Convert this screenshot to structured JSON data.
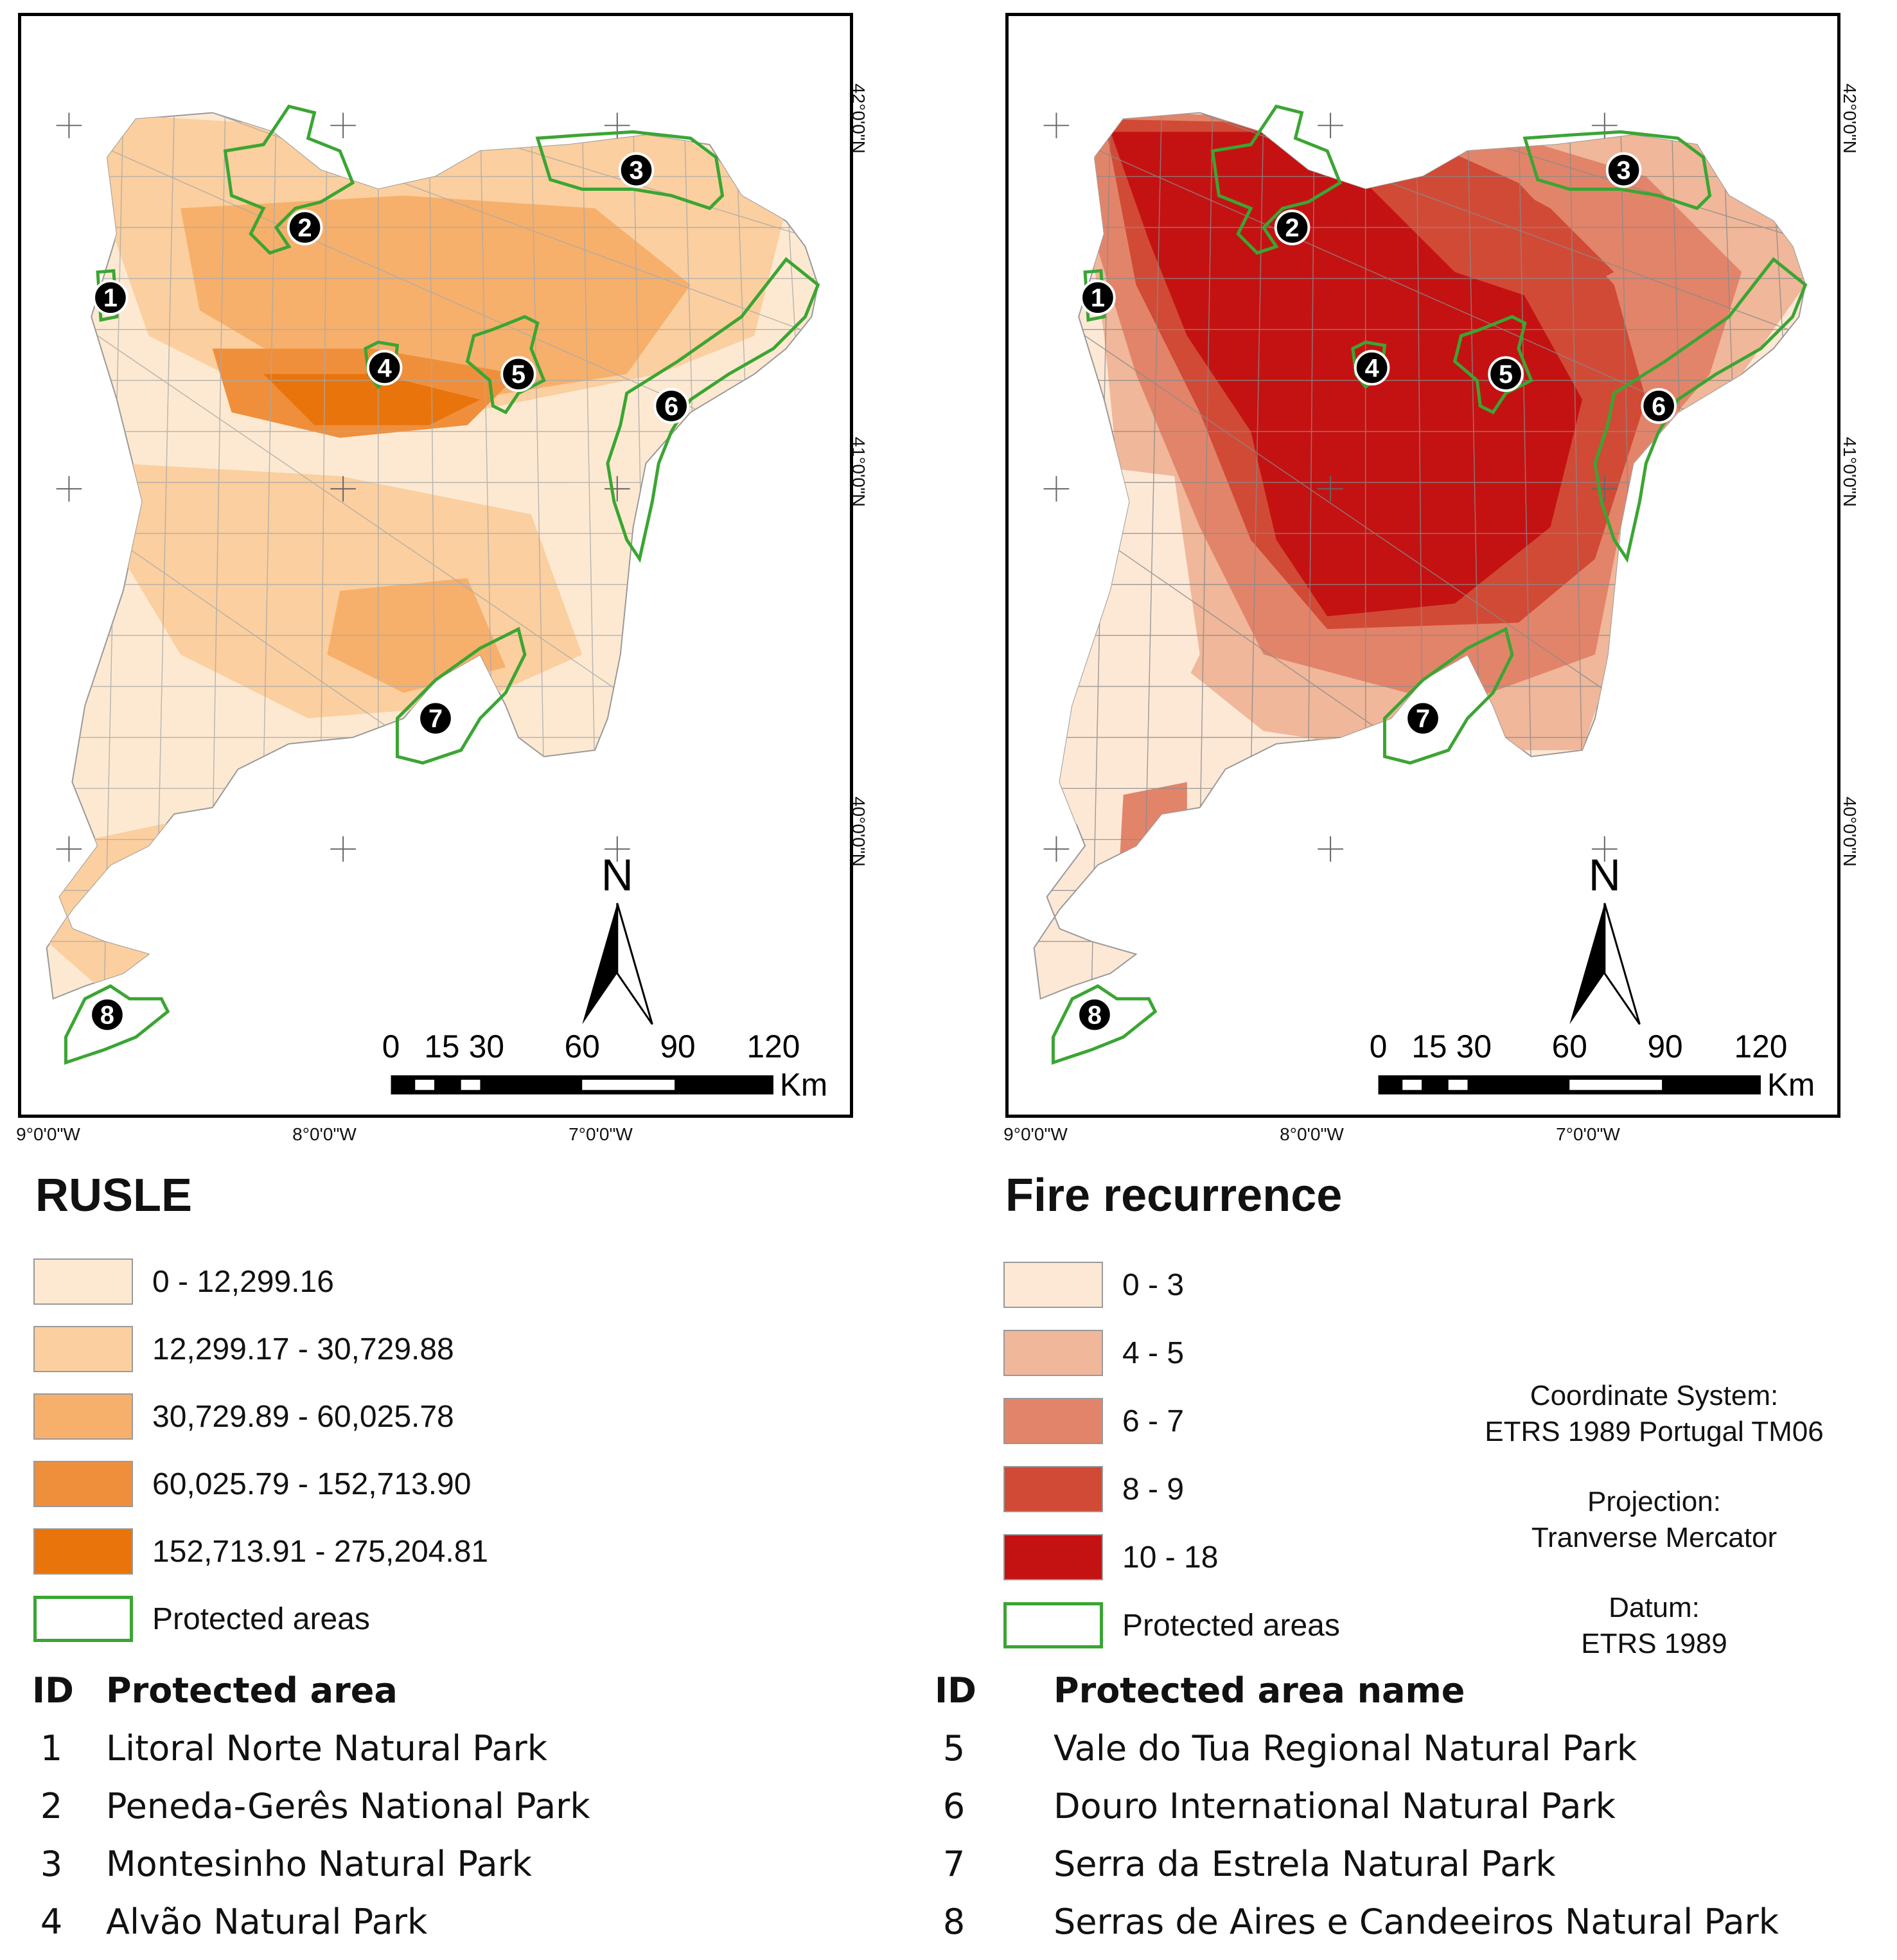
{
  "maps": {
    "left": {
      "title": "RUSLE",
      "legend": [
        {
          "label": "0 - 12,299.16",
          "color": "#fde9d1"
        },
        {
          "label": "12,299.17 - 30,729.88",
          "color": "#fbcf9f"
        },
        {
          "label": "30,729.89 - 60,025.78",
          "color": "#f6b06c"
        },
        {
          "label": "60,025.79 - 152,713.90",
          "color": "#f08f3b"
        },
        {
          "label": "152,713.91 - 275,204.81",
          "color": "#e9740c"
        }
      ],
      "protected_label": "Protected areas"
    },
    "right": {
      "title": "Fire recurrence",
      "legend": [
        {
          "label": "0 - 3",
          "color": "#fde8d6"
        },
        {
          "label": "4 - 5",
          "color": "#f0b79a"
        },
        {
          "label": "6 - 7",
          "color": "#e2846a"
        },
        {
          "label": "8 - 9",
          "color": "#d14a36"
        },
        {
          "label": "10 - 18",
          "color": "#c41212"
        }
      ],
      "protected_label": "Protected areas"
    }
  },
  "axes": {
    "lon_labels": [
      "9°0'0\"W",
      "8°0'0\"W",
      "7°0'0\"W"
    ],
    "lat_labels": [
      "42°0'0\"N",
      "41°0'0\"N",
      "40°0'0\"N"
    ]
  },
  "scale_bar": {
    "ticks": [
      "0",
      "15",
      "30",
      "60",
      "90",
      "120"
    ],
    "unit": "Km",
    "north": "N"
  },
  "protected_area_ids": [
    "1",
    "2",
    "3",
    "4",
    "5",
    "6",
    "7",
    "8"
  ],
  "colors": {
    "protected_outline": "#3ba533",
    "marker_fill": "#000000"
  },
  "crs": {
    "coord_title": "Coordinate System:",
    "coord_value": "ETRS 1989 Portugal TM06",
    "proj_title": "Projection:",
    "proj_value": "Tranverse Mercator",
    "datum_title": "Datum:",
    "datum_value": "ETRS 1989"
  },
  "table": {
    "left": {
      "id_header": "ID",
      "name_header": "Protected area",
      "rows": [
        {
          "id": "1",
          "name": "Litoral Norte Natural Park"
        },
        {
          "id": "2",
          "name": "Peneda-Gerês National Park"
        },
        {
          "id": "3",
          "name": "Montesinho Natural Park"
        },
        {
          "id": "4",
          "name": "Alvão Natural Park"
        }
      ]
    },
    "right": {
      "id_header": "ID",
      "name_header": "Protected area name",
      "rows": [
        {
          "id": "5",
          "name": "Vale do Tua Regional Natural Park"
        },
        {
          "id": "6",
          "name": "Douro International Natural Park"
        },
        {
          "id": "7",
          "name": "Serra da Estrela Natural Park"
        },
        {
          "id": "8",
          "name": "Serras de Aires e Candeeiros Natural Park"
        }
      ]
    }
  }
}
